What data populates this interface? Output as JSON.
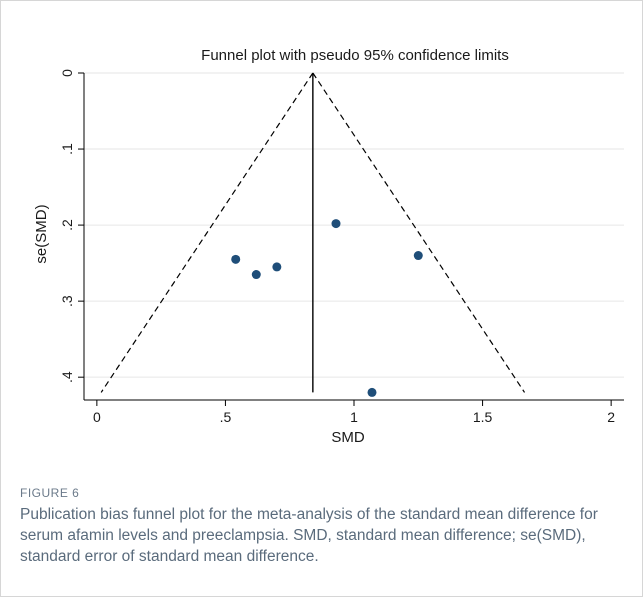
{
  "figure": {
    "label": "FIGURE 6",
    "caption": "Publication bias funnel plot for the meta-analysis of the standard mean difference for serum afamin levels and preeclampsia. SMD, standard mean difference; se(SMD), standard error of standard mean difference."
  },
  "chart_data": {
    "type": "scatter",
    "title": "Funnel plot with pseudo 95% confidence limits",
    "xlabel": "SMD",
    "ylabel": "se(SMD)",
    "xlim": [
      -0.05,
      2.05
    ],
    "ylim": [
      0,
      0.43
    ],
    "y_reversed": true,
    "x_ticks": [
      0,
      0.5,
      1,
      1.5,
      2
    ],
    "x_tick_labels": [
      "0",
      ".5",
      "1",
      "1.5",
      "2"
    ],
    "y_ticks": [
      0,
      0.1,
      0.2,
      0.3,
      0.4
    ],
    "y_tick_labels": [
      "0",
      ".1",
      ".2",
      ".3",
      ".4"
    ],
    "grid": "horizontal",
    "pooled_estimate": 0.84,
    "pseudo_ci_se_max": 0.42,
    "points": [
      {
        "x": 0.54,
        "y": 0.245
      },
      {
        "x": 0.62,
        "y": 0.265
      },
      {
        "x": 0.7,
        "y": 0.255
      },
      {
        "x": 0.93,
        "y": 0.198
      },
      {
        "x": 1.25,
        "y": 0.24
      },
      {
        "x": 1.07,
        "y": 0.42
      }
    ],
    "colors": {
      "point": "#1f4e79",
      "line": "#000000",
      "grid": "#e6e6e6",
      "axis": "#000000"
    }
  }
}
